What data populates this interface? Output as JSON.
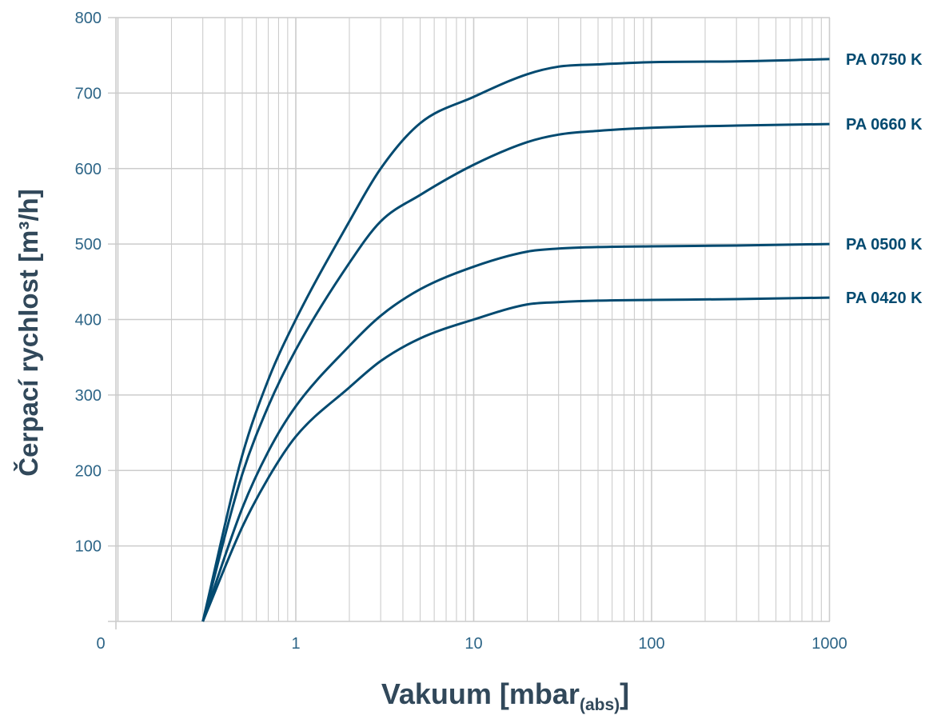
{
  "chart_data": {
    "type": "line",
    "xlabel": "Vakuum [mbar",
    "xlabel_sub": "(abs)",
    "xlabel_end": "]",
    "ylabel": "Čerpací rychlost [m³/h]",
    "x_scale": "log",
    "x_ticks": [
      "0",
      "1",
      "10",
      "100",
      "1000"
    ],
    "y_ticks": [
      "100",
      "200",
      "300",
      "400",
      "500",
      "600",
      "700",
      "800"
    ],
    "xlim": [
      0.2,
      1000
    ],
    "ylim": [
      0,
      800
    ],
    "grid": true,
    "legend": "labels at right end of each line",
    "colors": {
      "line": "#024a70",
      "grid": "#cccccc",
      "tick_text": "#2d6587",
      "axis_title": "#31485a"
    },
    "series": [
      {
        "name": "PA 0750 K",
        "points": [
          [
            0.3,
            0
          ],
          [
            0.5,
            220
          ],
          [
            0.7,
            320
          ],
          [
            1,
            400
          ],
          [
            2,
            530
          ],
          [
            3,
            600
          ],
          [
            5,
            660
          ],
          [
            10,
            695
          ],
          [
            20,
            725
          ],
          [
            30,
            735
          ],
          [
            50,
            738
          ],
          [
            100,
            741
          ],
          [
            300,
            742
          ],
          [
            1000,
            745
          ]
        ]
      },
      {
        "name": "PA 0660 K",
        "points": [
          [
            0.3,
            0
          ],
          [
            0.5,
            195
          ],
          [
            0.7,
            285
          ],
          [
            1,
            360
          ],
          [
            2,
            475
          ],
          [
            3,
            530
          ],
          [
            5,
            565
          ],
          [
            10,
            605
          ],
          [
            20,
            635
          ],
          [
            30,
            645
          ],
          [
            50,
            650
          ],
          [
            100,
            654
          ],
          [
            300,
            657
          ],
          [
            1000,
            659
          ]
        ]
      },
      {
        "name": "PA 0500 K",
        "points": [
          [
            0.3,
            0
          ],
          [
            0.5,
            150
          ],
          [
            0.7,
            225
          ],
          [
            1,
            285
          ],
          [
            2,
            365
          ],
          [
            3,
            405
          ],
          [
            5,
            440
          ],
          [
            10,
            470
          ],
          [
            20,
            490
          ],
          [
            30,
            494
          ],
          [
            50,
            496
          ],
          [
            100,
            497
          ],
          [
            300,
            498
          ],
          [
            1000,
            500
          ]
        ]
      },
      {
        "name": "PA 0420 K",
        "points": [
          [
            0.3,
            0
          ],
          [
            0.5,
            125
          ],
          [
            0.7,
            190
          ],
          [
            1,
            245
          ],
          [
            2,
            310
          ],
          [
            3,
            345
          ],
          [
            5,
            375
          ],
          [
            10,
            400
          ],
          [
            20,
            420
          ],
          [
            30,
            423
          ],
          [
            50,
            425
          ],
          [
            100,
            426
          ],
          [
            300,
            427
          ],
          [
            1000,
            429
          ]
        ]
      }
    ]
  }
}
